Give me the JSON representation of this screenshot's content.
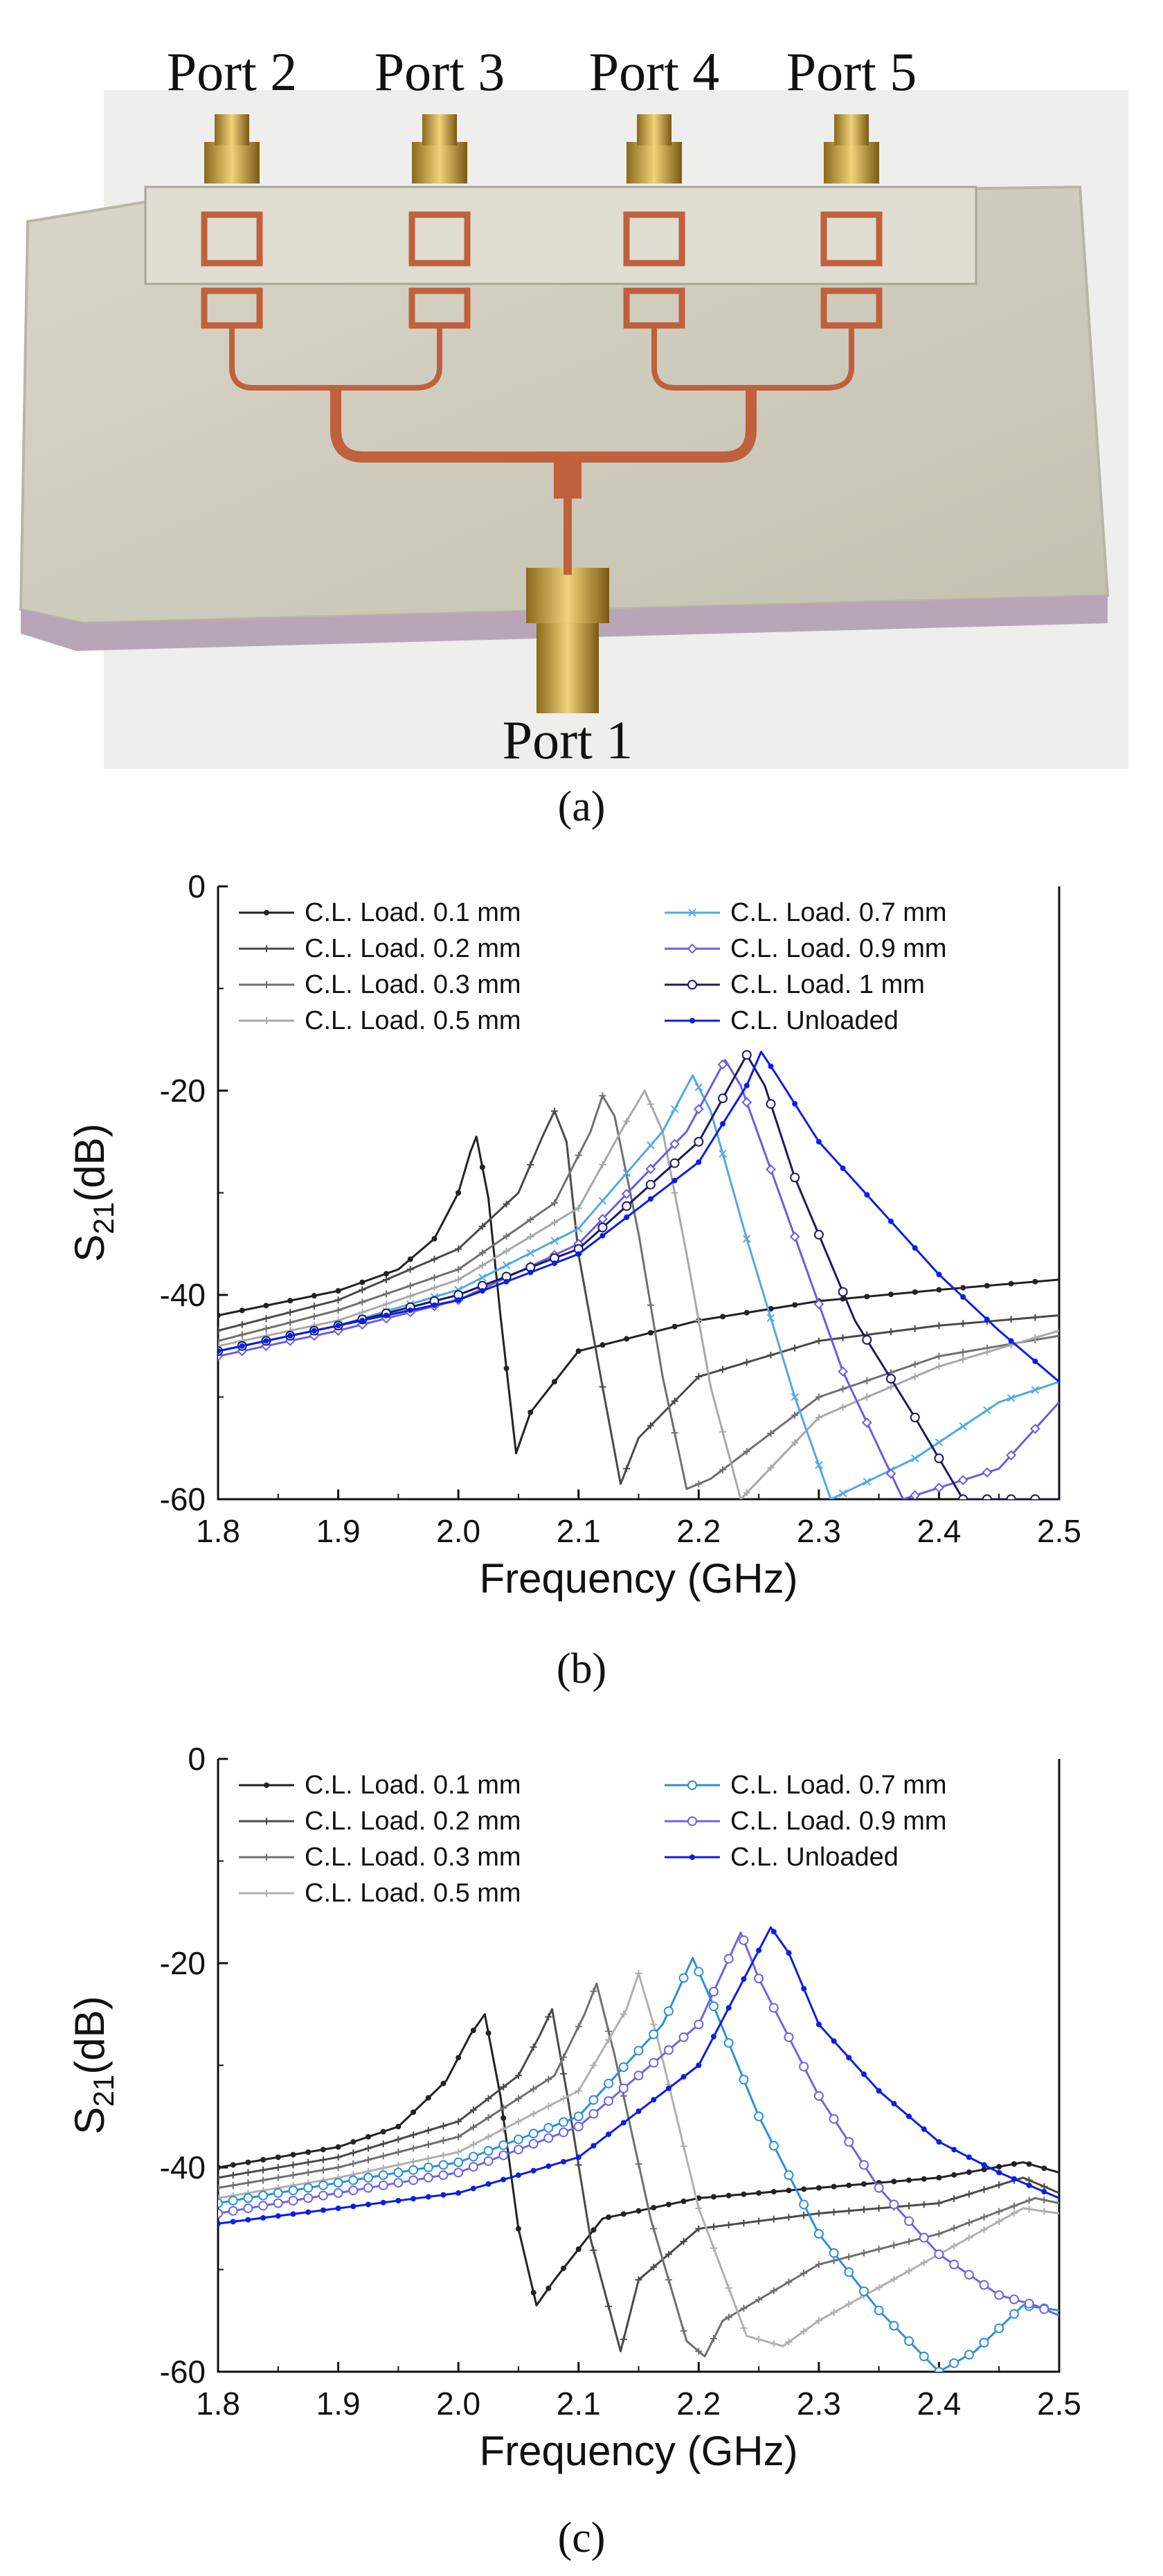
{
  "panel_a": {
    "caption": "(a)",
    "port_labels": [
      "Port 2",
      "Port 3",
      "Port 4",
      "Port 5",
      "Port 1"
    ]
  },
  "chart_data": [
    {
      "id": "b",
      "type": "line",
      "caption": "(b)",
      "xlabel": "Frequency (GHz)",
      "ylabel": "S21(dB)",
      "xlim": [
        1.8,
        2.5
      ],
      "ylim": [
        -60,
        0
      ],
      "x_ticks": [
        "1.8",
        "1.9",
        "2.0",
        "2.1",
        "2.2",
        "2.3",
        "2.4",
        "2.5"
      ],
      "y_ticks": [
        "0",
        "-20",
        "-40",
        "-60"
      ],
      "legend_placement": "top",
      "series": [
        {
          "name": "C.L. Load. 0.1 mm",
          "color": "#222222",
          "marker": "dot",
          "points": [
            [
              1.8,
              -42.0
            ],
            [
              1.9,
              -39.6
            ],
            [
              1.95,
              -37.5
            ],
            [
              1.98,
              -34.5
            ],
            [
              2.0,
              -30.0
            ],
            [
              2.01,
              -26.0
            ],
            [
              2.015,
              -24.5
            ],
            [
              2.025,
              -30.5
            ],
            [
              2.035,
              -42.0
            ],
            [
              2.048,
              -55.5
            ],
            [
              2.06,
              -51.5
            ],
            [
              2.1,
              -45.5
            ],
            [
              2.2,
              -42.5
            ],
            [
              2.3,
              -40.6
            ],
            [
              2.4,
              -39.5
            ],
            [
              2.5,
              -38.5
            ]
          ]
        },
        {
          "name": "C.L. Load. 0.2 mm",
          "color": "#4a4a4a",
          "marker": "plus",
          "points": [
            [
              1.8,
              -43.5
            ],
            [
              1.9,
              -40.5
            ],
            [
              2.0,
              -35.5
            ],
            [
              2.05,
              -30.0
            ],
            [
              2.07,
              -24.5
            ],
            [
              2.08,
              -22.0
            ],
            [
              2.09,
              -25.0
            ],
            [
              2.1,
              -36.0
            ],
            [
              2.12,
              -49.0
            ],
            [
              2.135,
              -58.5
            ],
            [
              2.15,
              -54.0
            ],
            [
              2.2,
              -48.0
            ],
            [
              2.3,
              -44.5
            ],
            [
              2.4,
              -43.0
            ],
            [
              2.5,
              -42.0
            ]
          ]
        },
        {
          "name": "C.L. Load. 0.3 mm",
          "color": "#707070",
          "marker": "plus",
          "points": [
            [
              1.8,
              -44.5
            ],
            [
              1.9,
              -41.5
            ],
            [
              2.0,
              -37.5
            ],
            [
              2.08,
              -31.0
            ],
            [
              2.11,
              -24.0
            ],
            [
              2.12,
              -20.5
            ],
            [
              2.13,
              -22.5
            ],
            [
              2.15,
              -34.0
            ],
            [
              2.17,
              -48.0
            ],
            [
              2.19,
              -59.0
            ],
            [
              2.21,
              -58.0
            ],
            [
              2.3,
              -50.0
            ],
            [
              2.4,
              -46.0
            ],
            [
              2.5,
              -44.0
            ]
          ]
        },
        {
          "name": "C.L. Load. 0.5 mm",
          "color": "#a8a8a8",
          "marker": "plus",
          "points": [
            [
              1.8,
              -45.0
            ],
            [
              1.9,
              -42.5
            ],
            [
              2.0,
              -38.5
            ],
            [
              2.1,
              -31.5
            ],
            [
              2.14,
              -23.0
            ],
            [
              2.155,
              -20.0
            ],
            [
              2.17,
              -24.0
            ],
            [
              2.19,
              -36.0
            ],
            [
              2.21,
              -49.0
            ],
            [
              2.235,
              -60.0
            ],
            [
              2.3,
              -52.0
            ],
            [
              2.4,
              -47.0
            ],
            [
              2.5,
              -43.5
            ]
          ]
        },
        {
          "name": "C.L. Load. 0.7 mm",
          "color": "#4fa8e8",
          "marker": "cross",
          "points": [
            [
              1.8,
              -45.5
            ],
            [
              1.9,
              -43.0
            ],
            [
              2.0,
              -39.5
            ],
            [
              2.1,
              -33.5
            ],
            [
              2.17,
              -24.0
            ],
            [
              2.195,
              -18.5
            ],
            [
              2.21,
              -22.0
            ],
            [
              2.24,
              -34.5
            ],
            [
              2.28,
              -50.0
            ],
            [
              2.31,
              -60.0
            ],
            [
              2.38,
              -56.0
            ],
            [
              2.45,
              -50.5
            ],
            [
              2.5,
              -48.5
            ]
          ]
        },
        {
          "name": "C.L. Load. 0.9 mm",
          "color": "#6a5ce8",
          "marker": "diamond",
          "points": [
            [
              1.8,
              -46.0
            ],
            [
              1.9,
              -43.5
            ],
            [
              2.0,
              -40.5
            ],
            [
              2.1,
              -35.0
            ],
            [
              2.19,
              -24.0
            ],
            [
              2.222,
              -17.0
            ],
            [
              2.235,
              -19.5
            ],
            [
              2.27,
              -31.0
            ],
            [
              2.32,
              -47.5
            ],
            [
              2.37,
              -60.0
            ],
            [
              2.45,
              -57.0
            ],
            [
              2.5,
              -50.5
            ]
          ]
        },
        {
          "name": "C.L. Load. 1 mm",
          "color": "#1a1a66",
          "marker": "circle",
          "points": [
            [
              1.8,
              -45.5
            ],
            [
              1.9,
              -43.0
            ],
            [
              2.0,
              -40.0
            ],
            [
              2.1,
              -35.5
            ],
            [
              2.2,
              -25.0
            ],
            [
              2.24,
              -16.5
            ],
            [
              2.255,
              -19.5
            ],
            [
              2.28,
              -28.5
            ],
            [
              2.33,
              -42.5
            ],
            [
              2.38,
              -52.0
            ],
            [
              2.42,
              -60.0
            ],
            [
              2.5,
              -60.0
            ]
          ]
        },
        {
          "name": "C.L. Unloaded",
          "color": "#0b1ee6",
          "marker": "dot",
          "points": [
            [
              1.8,
              -45.5
            ],
            [
              1.9,
              -43.0
            ],
            [
              2.0,
              -40.5
            ],
            [
              2.1,
              -36.0
            ],
            [
              2.2,
              -27.0
            ],
            [
              2.24,
              -19.5
            ],
            [
              2.252,
              -16.2
            ],
            [
              2.265,
              -18.5
            ],
            [
              2.3,
              -25.0
            ],
            [
              2.35,
              -31.5
            ],
            [
              2.4,
              -38.0
            ],
            [
              2.45,
              -43.5
            ],
            [
              2.5,
              -48.5
            ]
          ]
        }
      ]
    },
    {
      "id": "c",
      "type": "line",
      "caption": "(c)",
      "xlabel": "Frequency (GHz)",
      "ylabel": "S21(dB)",
      "xlim": [
        1.8,
        2.5
      ],
      "ylim": [
        -60,
        0
      ],
      "x_ticks": [
        "1.8",
        "1.9",
        "2.0",
        "2.1",
        "2.2",
        "2.3",
        "2.4",
        "2.5"
      ],
      "y_ticks": [
        "0",
        "-20",
        "-40",
        "-60"
      ],
      "legend_placement": "top",
      "series": [
        {
          "name": "C.L. Load. 0.1 mm",
          "color": "#222222",
          "marker": "dot",
          "points": [
            [
              1.8,
              -40.0
            ],
            [
              1.9,
              -38.0
            ],
            [
              1.95,
              -36.0
            ],
            [
              1.99,
              -31.5
            ],
            [
              2.01,
              -27.0
            ],
            [
              2.022,
              -25.0
            ],
            [
              2.035,
              -33.0
            ],
            [
              2.05,
              -46.0
            ],
            [
              2.065,
              -53.5
            ],
            [
              2.08,
              -51.0
            ],
            [
              2.12,
              -45.0
            ],
            [
              2.2,
              -43.0
            ],
            [
              2.3,
              -42.0
            ],
            [
              2.4,
              -41.0
            ],
            [
              2.47,
              -39.5
            ],
            [
              2.5,
              -40.5
            ]
          ]
        },
        {
          "name": "C.L. Load. 0.2 mm",
          "color": "#4a4a4a",
          "marker": "plus",
          "points": [
            [
              1.8,
              -41.0
            ],
            [
              1.9,
              -39.0
            ],
            [
              2.0,
              -35.5
            ],
            [
              2.05,
              -31.0
            ],
            [
              2.068,
              -27.0
            ],
            [
              2.078,
              -24.5
            ],
            [
              2.09,
              -32.5
            ],
            [
              2.11,
              -47.0
            ],
            [
              2.135,
              -58.0
            ],
            [
              2.15,
              -51.0
            ],
            [
              2.2,
              -46.0
            ],
            [
              2.3,
              -44.5
            ],
            [
              2.4,
              -43.5
            ],
            [
              2.47,
              -41.0
            ],
            [
              2.5,
              -42.5
            ]
          ]
        },
        {
          "name": "C.L. Load. 0.3 mm",
          "color": "#707070",
          "marker": "plus",
          "points": [
            [
              1.8,
              -42.0
            ],
            [
              1.9,
              -40.0
            ],
            [
              2.0,
              -37.0
            ],
            [
              2.08,
              -31.0
            ],
            [
              2.105,
              -25.0
            ],
            [
              2.115,
              -22.0
            ],
            [
              2.13,
              -29.0
            ],
            [
              2.16,
              -45.0
            ],
            [
              2.19,
              -57.0
            ],
            [
              2.205,
              -58.5
            ],
            [
              2.22,
              -55.0
            ],
            [
              2.3,
              -49.5
            ],
            [
              2.4,
              -46.5
            ],
            [
              2.48,
              -43.0
            ],
            [
              2.5,
              -43.5
            ]
          ]
        },
        {
          "name": "C.L. Load. 0.5 mm",
          "color": "#b0b0b0",
          "marker": "plus",
          "points": [
            [
              1.8,
              -43.0
            ],
            [
              1.9,
              -41.0
            ],
            [
              2.0,
              -38.5
            ],
            [
              2.1,
              -32.5
            ],
            [
              2.14,
              -24.5
            ],
            [
              2.15,
              -21.0
            ],
            [
              2.165,
              -27.0
            ],
            [
              2.2,
              -44.0
            ],
            [
              2.24,
              -56.5
            ],
            [
              2.27,
              -57.5
            ],
            [
              2.3,
              -55.0
            ],
            [
              2.4,
              -48.5
            ],
            [
              2.47,
              -44.0
            ],
            [
              2.5,
              -44.5
            ]
          ]
        },
        {
          "name": "C.L. Load. 0.7 mm",
          "color": "#2a8fdc",
          "marker": "circle",
          "points": [
            [
              1.8,
              -43.5
            ],
            [
              1.9,
              -41.5
            ],
            [
              2.0,
              -39.5
            ],
            [
              2.1,
              -35.0
            ],
            [
              2.17,
              -26.0
            ],
            [
              2.195,
              -19.5
            ],
            [
              2.21,
              -23.5
            ],
            [
              2.25,
              -35.0
            ],
            [
              2.3,
              -46.5
            ],
            [
              2.35,
              -54.0
            ],
            [
              2.4,
              -60.0
            ],
            [
              2.43,
              -58.0
            ],
            [
              2.47,
              -53.5
            ],
            [
              2.5,
              -54.0
            ]
          ]
        },
        {
          "name": "C.L. Load. 0.9 mm",
          "color": "#6f63e8",
          "marker": "circle",
          "points": [
            [
              1.8,
              -44.5
            ],
            [
              1.9,
              -42.5
            ],
            [
              2.0,
              -40.5
            ],
            [
              2.1,
              -36.0
            ],
            [
              2.2,
              -26.0
            ],
            [
              2.235,
              -17.0
            ],
            [
              2.25,
              -21.5
            ],
            [
              2.3,
              -33.0
            ],
            [
              2.35,
              -42.0
            ],
            [
              2.4,
              -48.5
            ],
            [
              2.45,
              -52.5
            ],
            [
              2.48,
              -53.5
            ],
            [
              2.5,
              -54.5
            ]
          ]
        },
        {
          "name": "C.L. Unloaded",
          "color": "#0b1ee6",
          "marker": "dot",
          "points": [
            [
              1.8,
              -45.5
            ],
            [
              1.9,
              -44.0
            ],
            [
              2.0,
              -42.5
            ],
            [
              2.1,
              -39.0
            ],
            [
              2.2,
              -30.0
            ],
            [
              2.24,
              -21.0
            ],
            [
              2.26,
              -16.5
            ],
            [
              2.275,
              -19.0
            ],
            [
              2.3,
              -26.0
            ],
            [
              2.35,
              -32.5
            ],
            [
              2.4,
              -37.5
            ],
            [
              2.45,
              -40.5
            ],
            [
              2.5,
              -43.0
            ]
          ]
        }
      ]
    }
  ]
}
